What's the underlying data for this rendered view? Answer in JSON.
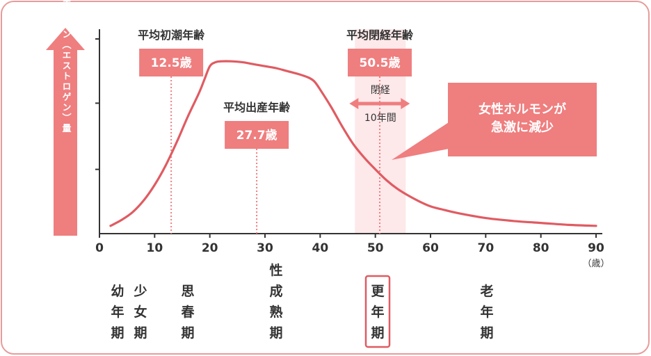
{
  "colors": {
    "curve": "#e05b62",
    "box": "#ef7e7f",
    "border": "#e89b9b",
    "menopause_band": "#fde8ea",
    "axis": "#333333",
    "highlight_frame": "#e05b62"
  },
  "chart_data": {
    "type": "line",
    "title": "",
    "ylabel": "女性ホルモン（エストロゲン）量",
    "xlabel": "",
    "x_unit": "（歳）",
    "xlim": [
      0,
      90
    ],
    "ylim": [
      0,
      100
    ],
    "y_ticks": [
      33,
      67,
      100
    ],
    "x_ticks": [
      0,
      10,
      20,
      30,
      40,
      50,
      60,
      70,
      80,
      90
    ],
    "grid": false,
    "series": [
      {
        "name": "",
        "x": [
          2,
          4,
          6,
          8,
          10,
          12,
          14,
          16,
          18,
          19,
          20,
          21,
          22,
          24,
          26,
          28,
          30,
          32,
          34,
          36,
          38,
          39,
          40,
          42,
          44,
          46,
          48,
          50,
          52,
          54,
          56,
          58,
          60,
          62,
          65,
          70,
          75,
          80,
          85,
          90
        ],
        "y": [
          4,
          7,
          11,
          17,
          25,
          35,
          47,
          60,
          72,
          79,
          86,
          88,
          88.5,
          88.5,
          88,
          87,
          86,
          85,
          83.5,
          82,
          80,
          78,
          74,
          65,
          55,
          46,
          39,
          33,
          27.5,
          23,
          19.5,
          16.5,
          14,
          12.5,
          10.5,
          8,
          6.5,
          5.5,
          4.5,
          4
        ]
      }
    ],
    "markers": [
      {
        "label": "平均初潮年齢",
        "value_label": "12.5歳",
        "x": 13
      },
      {
        "label": "平均出産年齢",
        "value_label": "27.7歳",
        "x": 28.5
      },
      {
        "label": "平均閉経年齢",
        "value_label": "50.5歳",
        "x": 50.8
      }
    ],
    "menopause_band": {
      "x_from": 46.3,
      "x_to": 55.5,
      "label_top": "閉経",
      "label_bottom": "10年間"
    },
    "callout": {
      "line1": "女性ホルモンが",
      "line2": "急激に減少"
    },
    "life_stages": [
      {
        "label": "幼年期",
        "x": 3.5,
        "highlighted": false
      },
      {
        "label": "少女期",
        "x": 7.5,
        "highlighted": false
      },
      {
        "label": "思春期",
        "x": 16,
        "highlighted": false
      },
      {
        "label": "性成熟期",
        "x": 32,
        "highlighted": false
      },
      {
        "label": "更年期",
        "x": 50,
        "highlighted": true
      },
      {
        "label": "老年期",
        "x": 70,
        "highlighted": false
      }
    ]
  }
}
